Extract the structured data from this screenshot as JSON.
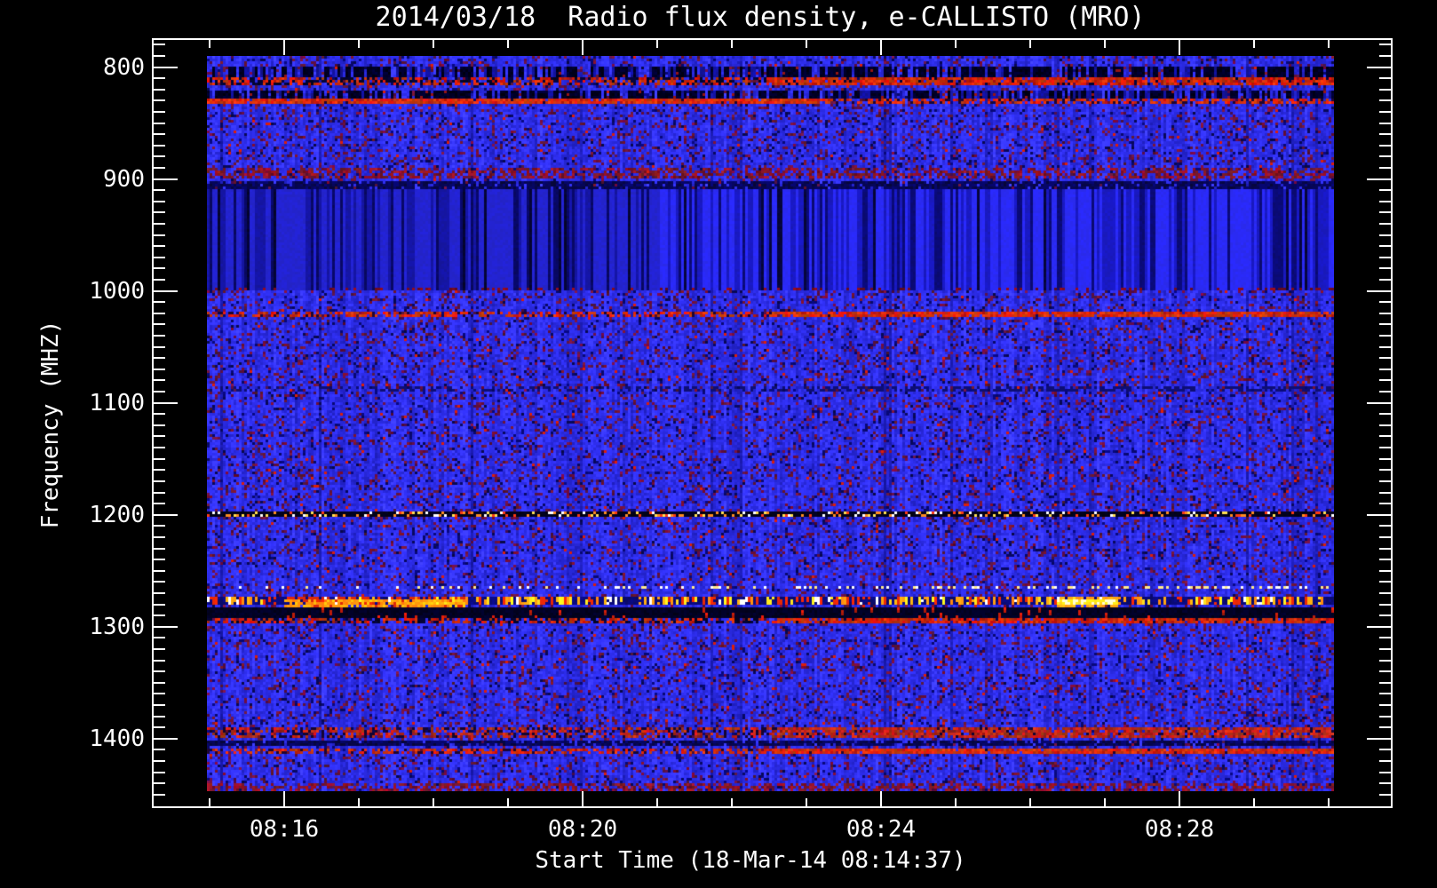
{
  "title": "2014/03/18  Radio flux density, e-CALLISTO (MRO)",
  "colors": {
    "page_background": "#000000",
    "frame": "#ffffff",
    "text": "#ffffff"
  },
  "chart_data": {
    "type": "heatmap",
    "kind": "radio-spectrogram",
    "date": "2014/03/18",
    "instrument": "e-CALLISTO (MRO)",
    "x_axis": {
      "label": "Start Time (18-Mar-14 08:14:37)",
      "start_time": "08:14:37",
      "major_ticks": [
        "08:16",
        "08:20",
        "08:24",
        "08:28"
      ],
      "minor_tick_interval_s": 60
    },
    "y_axis": {
      "label": "Frequency (MHZ)",
      "major_ticks": [
        800,
        900,
        1000,
        1100,
        1200,
        1300,
        1400
      ],
      "minor_tick_step_mhz": 10,
      "range_mhz": [
        790,
        1447
      ],
      "direction": "increasing-downward"
    },
    "legend": "none",
    "grid": "off",
    "palette": {
      "background_blue": "#2a2ae0",
      "dark_navy": "#000a60",
      "speckle_crimson": "#6e1238",
      "line_red": "#e03000",
      "bright_orange": "#ff8c1e",
      "bright_yellow": "#ffdf30",
      "white_dash": "#ffffff",
      "black_band": "#000010"
    },
    "rfi_bands": [
      {
        "f0": 800,
        "f1": 810,
        "style": "dark-blocks",
        "ramp": "right",
        "desc": "broken dark RFI band ~800-810 MHz"
      },
      {
        "f0": 810,
        "f1": 815,
        "style": "red-or-black",
        "ramp": "right",
        "desc": "red interference line ~812 MHz, strongest right half"
      },
      {
        "f0": 822,
        "f1": 828,
        "style": "dark-blocks",
        "ramp": "left",
        "desc": "broken dark RFI band ~825 MHz"
      },
      {
        "f0": 828,
        "f1": 832,
        "style": "red-line",
        "ramp": "left",
        "desc": "red interference line ~830 MHz"
      },
      {
        "f0": 890,
        "f1": 900,
        "style": "red-speckle",
        "ramp": "flat",
        "desc": "reddish speckle band just below 900 MHz"
      },
      {
        "f0": 902,
        "f1": 908,
        "style": "dark",
        "ramp": "flat",
        "desc": "dark navy band ~905 MHz"
      },
      {
        "f0": 909,
        "f1": 1000,
        "style": "stripes",
        "ramp": "flat",
        "desc": "vertically striped region 910-1000 MHz"
      },
      {
        "f0": 1019,
        "f1": 1023,
        "style": "red-line",
        "ramp": "right",
        "desc": "narrowband RFI ~1021 MHz, stronger after 08:23"
      },
      {
        "f0": 1085,
        "f1": 1089,
        "style": "dark-faint",
        "ramp": "right",
        "desc": "faint dark line ~1087 MHz"
      },
      {
        "f0": 1198,
        "f1": 1202,
        "style": "speckle-line",
        "ramp": "flat",
        "desc": "black speckled line with bright dots at 1200 MHz"
      },
      {
        "f0": 1263,
        "f1": 1267,
        "style": "dash-sparse",
        "ramp": "right",
        "desc": "sparse white dashes ~1265 MHz"
      },
      {
        "f0": 1274,
        "f1": 1281,
        "style": "bright-dash",
        "ramp": "flat",
        "desc": "bright white/yellow/orange dashed RFI line ~1277 MHz"
      },
      {
        "f0": 1282,
        "f1": 1292,
        "style": "black-red",
        "ramp": "flat",
        "desc": "black band with red blobs ~1285 MHz"
      },
      {
        "f0": 1292,
        "f1": 1297,
        "style": "red-or-black",
        "ramp": "right",
        "desc": "red band ~1295 MHz, black on left, red on right"
      },
      {
        "f0": 1390,
        "f1": 1400,
        "style": "red-band",
        "ramp": "right",
        "desc": "red RFI band ~1395 MHz, intense after 08:23"
      },
      {
        "f0": 1402,
        "f1": 1407,
        "style": "dark",
        "ramp": "flat",
        "desc": "dark band ~1405 MHz"
      },
      {
        "f0": 1409,
        "f1": 1414,
        "style": "red-line",
        "ramp": "right",
        "desc": "strong red line ~1412 MHz"
      },
      {
        "f0": 1441,
        "f1": 1447,
        "style": "red-speckle",
        "ramp": "flat",
        "desc": "reddish speckle rows at bottom edge"
      }
    ],
    "hotspots": [
      {
        "f": 1277,
        "x0": 0.755,
        "x1": 0.81,
        "style": "yellow",
        "desc": "intense yellow burst ~08:26"
      },
      {
        "f": 1277,
        "x0": 0.07,
        "x1": 0.23,
        "style": "orange",
        "desc": "bright orange segment ~08:16-08:18"
      }
    ]
  }
}
